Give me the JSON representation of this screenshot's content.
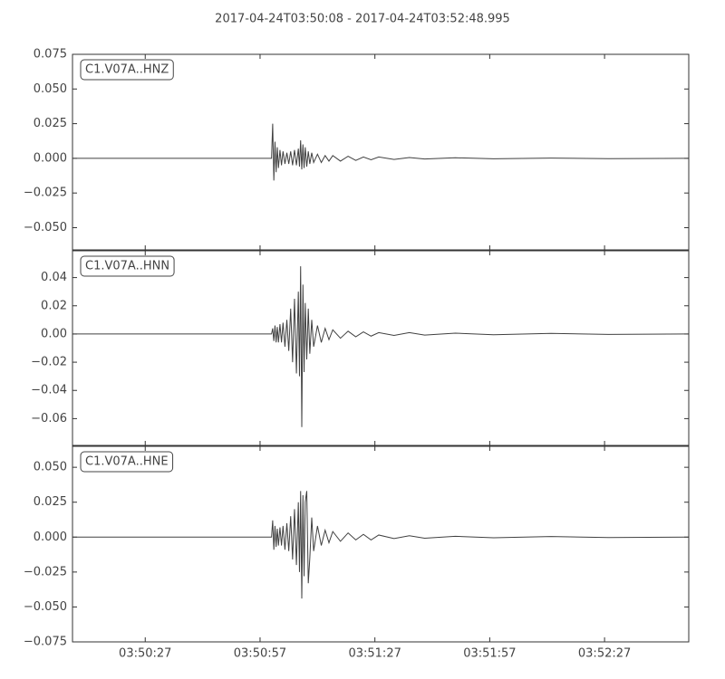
{
  "title": "2017-04-24T03:50:08  -  2017-04-24T03:52:48.995",
  "chart_data": [
    {
      "type": "line",
      "x": [
        0,
        20,
        40,
        52.0,
        52.3,
        52.6,
        52.9,
        53.2,
        53.5,
        53.8,
        54.2,
        54.6,
        55,
        55.5,
        56,
        56.5,
        57,
        57.5,
        58,
        58.5,
        59,
        59.3,
        59.6,
        59.9,
        60.2,
        60.5,
        60.8,
        61.2,
        61.6,
        62,
        62.5,
        63,
        64,
        65,
        66,
        67,
        68,
        70,
        72,
        74,
        76,
        78,
        80,
        84,
        88,
        92,
        100,
        110,
        125,
        140,
        160.9
      ],
      "series": [
        {
          "name": "C1.V07A..HNZ",
          "color": "#404040",
          "values": [
            0,
            0,
            0,
            0,
            0.025,
            -0.016,
            0.012,
            -0.01,
            0.008,
            -0.007,
            0.006,
            -0.005,
            0.005,
            -0.004,
            0.004,
            -0.004,
            0.005,
            -0.005,
            0.006,
            -0.005,
            0.007,
            -0.006,
            0.013,
            -0.008,
            0.01,
            -0.007,
            0.008,
            -0.006,
            0.005,
            -0.004,
            0.004,
            -0.003,
            0.003,
            -0.003,
            0.002,
            -0.002,
            0.002,
            -0.002,
            0.0015,
            -0.0015,
            0.001,
            -0.001,
            0.001,
            -0.0008,
            0.0006,
            -0.0005,
            0.0004,
            -0.0003,
            0.0002,
            -0.0002,
            0
          ]
        }
      ],
      "xlim": [
        0,
        160.995
      ],
      "ylim": [
        -0.066,
        0.075
      ],
      "yticks": [
        {
          "value": -0.05,
          "label": "−0.050"
        },
        {
          "value": -0.025,
          "label": "−0.025"
        },
        {
          "value": 0,
          "label": "0.000"
        },
        {
          "value": 0.025,
          "label": "0.025"
        },
        {
          "value": 0.05,
          "label": "0.050"
        },
        {
          "value": 0.075,
          "label": "0.075"
        }
      ]
    },
    {
      "type": "line",
      "x": [
        0,
        20,
        40,
        52.0,
        52.3,
        52.6,
        52.9,
        53.2,
        53.5,
        53.8,
        54.2,
        54.6,
        55,
        55.5,
        56,
        56.5,
        57,
        57.5,
        58,
        58.5,
        59,
        59.3,
        59.6,
        59.9,
        60.2,
        60.5,
        60.8,
        61.2,
        61.6,
        62,
        62.5,
        63,
        64,
        65,
        66,
        67,
        68,
        70,
        72,
        74,
        76,
        78,
        80,
        84,
        88,
        92,
        100,
        110,
        125,
        140,
        160.9
      ],
      "series": [
        {
          "name": "C1.V07A..HNN",
          "color": "#404040",
          "values": [
            0,
            0,
            0,
            0,
            0.004,
            -0.005,
            0.006,
            -0.006,
            0.005,
            -0.006,
            0.007,
            -0.006,
            0.008,
            -0.009,
            0.01,
            -0.012,
            0.018,
            -0.02,
            0.025,
            -0.028,
            0.03,
            -0.03,
            0.048,
            -0.066,
            0.035,
            -0.027,
            0.022,
            -0.018,
            0.018,
            -0.014,
            0.01,
            -0.009,
            0.006,
            -0.006,
            0.004,
            -0.004,
            0.003,
            -0.003,
            0.002,
            -0.002,
            0.0015,
            -0.0015,
            0.001,
            -0.001,
            0.001,
            -0.0008,
            0.0006,
            -0.0005,
            0.0004,
            -0.0003,
            0
          ]
        }
      ],
      "xlim": [
        0,
        160.995
      ],
      "ylim": [
        -0.079,
        0.059
      ],
      "yticks": [
        {
          "value": -0.06,
          "label": "−0.06"
        },
        {
          "value": -0.04,
          "label": "−0.04"
        },
        {
          "value": -0.02,
          "label": "−0.02"
        },
        {
          "value": 0,
          "label": "0.00"
        },
        {
          "value": 0.02,
          "label": "0.02"
        },
        {
          "value": 0.04,
          "label": "0.04"
        }
      ]
    },
    {
      "type": "line",
      "x": [
        0,
        20,
        40,
        52.0,
        52.3,
        52.6,
        52.9,
        53.2,
        53.5,
        53.8,
        54.2,
        54.6,
        55,
        55.5,
        56,
        56.5,
        57,
        57.5,
        58,
        58.5,
        59,
        59.3,
        59.6,
        59.9,
        60.2,
        60.5,
        60.8,
        61.2,
        61.6,
        62,
        62.5,
        63,
        64,
        65,
        66,
        67,
        68,
        70,
        72,
        74,
        76,
        78,
        80,
        84,
        88,
        92,
        100,
        110,
        125,
        140,
        160.9
      ],
      "series": [
        {
          "name": "C1.V07A..HNE",
          "color": "#404040",
          "values": [
            0,
            0,
            0,
            0,
            0.012,
            -0.009,
            0.008,
            -0.007,
            0.006,
            -0.006,
            0.007,
            -0.006,
            0.008,
            -0.009,
            0.01,
            -0.01,
            0.015,
            -0.016,
            0.02,
            -0.02,
            0.025,
            -0.025,
            0.033,
            -0.044,
            0.03,
            -0.028,
            0.025,
            0.033,
            -0.033,
            -0.015,
            0.014,
            -0.01,
            0.008,
            -0.006,
            0.005,
            -0.004,
            0.004,
            -0.003,
            0.003,
            -0.002,
            0.002,
            -0.002,
            0.0015,
            -0.001,
            0.001,
            -0.0008,
            0.0006,
            -0.0005,
            0.0004,
            -0.0003,
            0
          ]
        }
      ],
      "xlim": [
        0,
        160.995
      ],
      "xticks": [
        {
          "value": 19,
          "label": "03:50:27"
        },
        {
          "value": 49,
          "label": "03:50:57"
        },
        {
          "value": 79,
          "label": "03:51:27"
        },
        {
          "value": 109,
          "label": "03:51:57"
        },
        {
          "value": 139,
          "label": "03:52:27"
        }
      ],
      "ylim": [
        -0.075,
        0.065
      ],
      "yticks": [
        {
          "value": -0.075,
          "label": "−0.075"
        },
        {
          "value": -0.05,
          "label": "−0.050"
        },
        {
          "value": -0.025,
          "label": "−0.025"
        },
        {
          "value": 0,
          "label": "0.000"
        },
        {
          "value": 0.025,
          "label": "0.025"
        },
        {
          "value": 0.05,
          "label": "0.050"
        }
      ]
    }
  ]
}
